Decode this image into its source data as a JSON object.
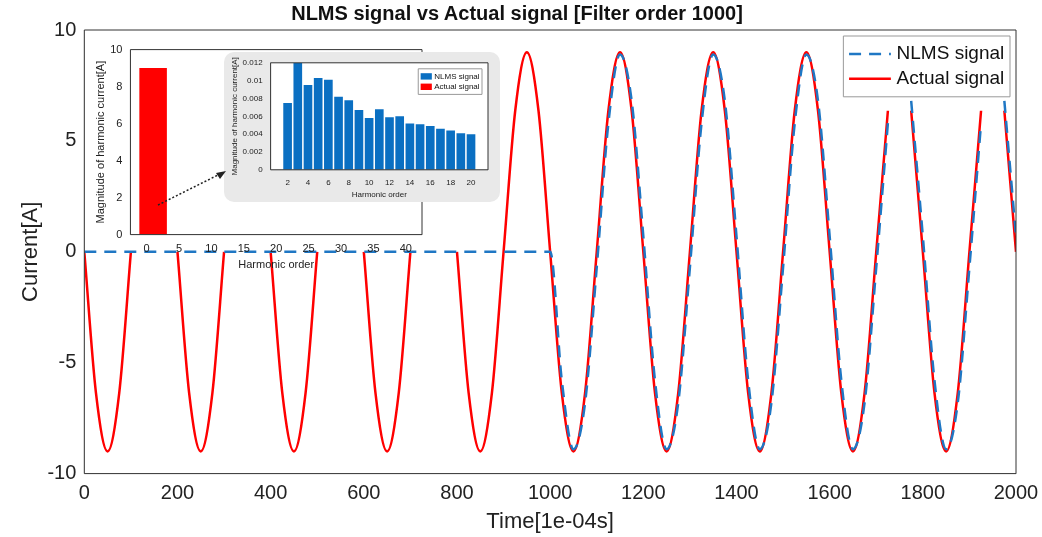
{
  "chart_data": [
    {
      "type": "line",
      "title": "NLMS signal vs Actual signal [Filter order 1000]",
      "xlabel": "Time[1e-04s]",
      "ylabel": "Current[A]",
      "xlim": [
        0,
        2000
      ],
      "xticks": [
        0,
        200,
        400,
        600,
        800,
        1000,
        1200,
        1400,
        1600,
        1800,
        2000
      ],
      "ylim": [
        -10,
        10
      ],
      "yticks": [
        -10,
        -5,
        0,
        5,
        10
      ],
      "grid": false,
      "legend": "top right",
      "marker": "none",
      "series": [
        {
          "name": "NLMS signal",
          "color": "#1f77c4",
          "line_style": "dashed",
          "x": [
            0,
            1000,
            1025,
            1050,
            1075,
            1100,
            1125,
            1150,
            1175,
            1200,
            1225,
            1250,
            1275,
            1300,
            1325,
            1350,
            1375,
            1400,
            1425,
            1450,
            1475,
            1500,
            1525,
            1550,
            1575,
            1600,
            1625,
            1650,
            1675,
            1700,
            1725,
            1750,
            1775,
            1800,
            1825,
            1850,
            1875,
            1900,
            1925,
            1950,
            1975,
            2000
          ],
          "values": [
            0,
            0,
            -5.8,
            -8.9,
            -6.8,
            -0.7,
            5.8,
            8.9,
            6.8,
            0.7,
            -5.8,
            -8.9,
            -6.8,
            -0.7,
            5.8,
            8.9,
            6.8,
            0.7,
            -5.8,
            -8.9,
            -6.8,
            -0.7,
            5.8,
            8.9,
            6.8,
            0.7,
            -5.8,
            -8.9,
            -6.8,
            -0.7,
            5.8,
            null,
            6.8,
            0.7,
            -5.8,
            -8.9,
            -6.8,
            -0.7,
            5.8,
            null,
            6.8,
            0.7
          ]
        },
        {
          "name": "Actual signal",
          "color": "#ff0000",
          "line_style": "solid",
          "x": [
            0,
            25,
            50,
            75,
            100,
            125,
            150,
            175,
            200,
            225,
            250,
            275,
            300,
            325,
            350,
            375,
            400,
            425,
            450,
            475,
            500,
            525,
            550,
            575,
            600,
            625,
            650,
            675,
            700,
            725,
            750,
            775,
            800,
            825,
            850,
            875,
            900,
            925,
            950,
            975,
            1000,
            1025,
            1050,
            1075,
            1100,
            1125,
            1150,
            1175,
            1200,
            1225,
            1250,
            1275,
            1300,
            1325,
            1350,
            1375,
            1400,
            1425,
            1450,
            1475,
            1500,
            1525,
            1550,
            1575,
            1600,
            1625,
            1650,
            1675,
            1700,
            1725,
            1750,
            1775,
            1800,
            1825,
            1850,
            1875,
            1900,
            1925,
            1950,
            1975,
            2000
          ],
          "values": [
            0,
            -6.36,
            -9,
            -6.36,
            0,
            null,
            null,
            null,
            0,
            -6.36,
            -9,
            -6.36,
            0,
            null,
            null,
            null,
            0,
            -6.36,
            -9,
            -6.36,
            0,
            null,
            null,
            null,
            0,
            -6.36,
            -9,
            -6.36,
            0,
            null,
            null,
            null,
            0,
            -6.36,
            -9,
            -6.36,
            0,
            6.36,
            9,
            6.36,
            0,
            -6.36,
            -9,
            -6.36,
            0,
            6.36,
            9,
            6.36,
            0,
            -6.36,
            -9,
            -6.36,
            0,
            6.36,
            9,
            6.36,
            0,
            -6.36,
            -9,
            -6.36,
            0,
            6.36,
            9,
            6.36,
            0,
            -6.36,
            -9,
            -6.36,
            0,
            6.36,
            null,
            6.36,
            0,
            -6.36,
            -9,
            -6.36,
            0,
            6.36,
            null,
            6.36,
            0
          ]
        }
      ]
    },
    {
      "type": "bar",
      "xlabel": "Harmonic order",
      "ylabel": "Magnitude of harmonic current[A]",
      "xlim": [
        0,
        40
      ],
      "xticks": [
        0,
        5,
        10,
        15,
        20,
        25,
        30,
        35,
        40
      ],
      "ylim": [
        0,
        10
      ],
      "yticks": [
        0,
        2,
        4,
        6,
        8,
        10
      ],
      "grid": false,
      "legend": false,
      "series": [
        {
          "color": "#ff0000",
          "x": [
            1
          ],
          "values": [
            9
          ]
        }
      ]
    },
    {
      "type": "bar",
      "xlabel": "Harmonic order",
      "ylabel": "Magnitude of harmonic current[A]",
      "xlim": [
        1.4,
        20.6
      ],
      "xticks": [
        2,
        4,
        6,
        8,
        10,
        12,
        14,
        16,
        18,
        20
      ],
      "ylim": [
        0,
        0.012
      ],
      "yticks": [
        0,
        0.002,
        0.004,
        0.006,
        0.008,
        0.01,
        0.012
      ],
      "grid": false,
      "legend": "top right",
      "series": [
        {
          "name": "NLMS signal",
          "color": "#0a6fc2",
          "x": [
            2,
            3,
            4,
            5,
            6,
            7,
            8,
            9,
            10,
            11,
            12,
            13,
            14,
            15,
            16,
            17,
            18,
            19,
            20
          ],
          "values": [
            0.0075,
            0.012,
            0.0095,
            0.0103,
            0.0101,
            0.0082,
            0.0078,
            0.0067,
            0.0058,
            0.0068,
            0.0059,
            0.006,
            0.0052,
            0.0051,
            0.0049,
            0.0046,
            0.0044,
            0.0041,
            0.004
          ]
        },
        {
          "name": "Actual signal",
          "color": "#ff0000"
        }
      ]
    }
  ]
}
